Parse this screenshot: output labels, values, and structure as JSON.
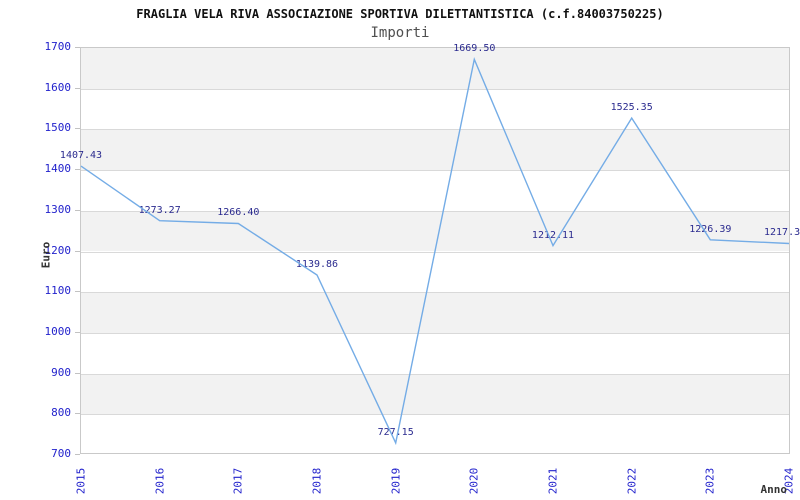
{
  "header": {
    "title": "FRAGLIA VELA RIVA ASSOCIAZIONE SPORTIVA DILETTANTISTICA (c.f.84003750225)",
    "subtitle": "Importi"
  },
  "chart_data": {
    "type": "line",
    "title": "FRAGLIA VELA RIVA ASSOCIAZIONE SPORTIVA DILETTANTISTICA (c.f.84003750225)",
    "subtitle": "Importi",
    "xlabel": "Anno",
    "ylabel": "Euro",
    "categories": [
      "2015",
      "2016",
      "2017",
      "2018",
      "2019",
      "2020",
      "2021",
      "2022",
      "2023",
      "2024"
    ],
    "values": [
      1407.43,
      1273.27,
      1266.4,
      1139.86,
      727.15,
      1669.5,
      1212.11,
      1525.35,
      1226.39,
      1217.3
    ],
    "point_labels": [
      "1407.43",
      "1273.27",
      "1266.40",
      "1139.86",
      "727.15",
      "1669.50",
      "1212.11",
      "1525.35",
      "1226.39",
      "1217.3"
    ],
    "last_label_clipped": true,
    "ylim": [
      700,
      1700
    ],
    "ytick_step": 100,
    "yticks": [
      700,
      800,
      900,
      1000,
      1100,
      1200,
      1300,
      1400,
      1500,
      1600,
      1700
    ],
    "legend": "none",
    "grid": "alternating horizontal bands",
    "colors": {
      "line": "#74ace6",
      "point_label": "#2b2b8f",
      "tick_label": "#2222cc",
      "band": "#f2f2f2",
      "gridline": "#d9d9d9",
      "plot_border": "#c9c9c9",
      "title": "#111111",
      "subtitle": "#4f4f4f",
      "axis_title": "#333333",
      "background": "#ffffff"
    }
  }
}
